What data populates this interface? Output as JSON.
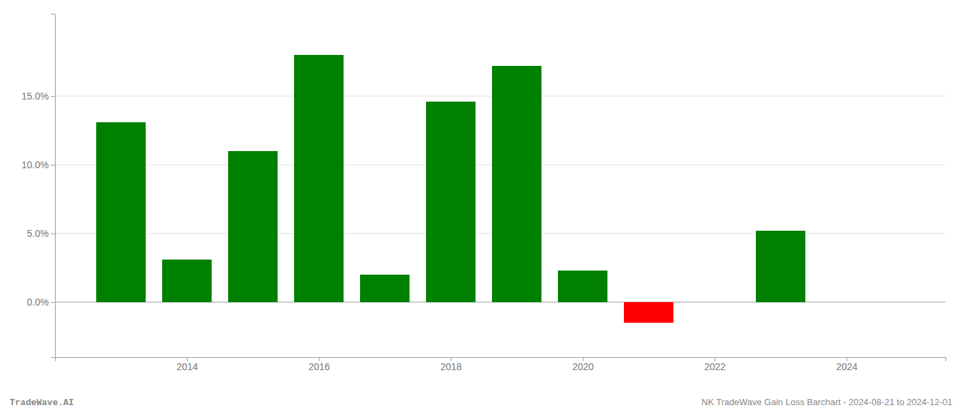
{
  "chart_data": {
    "type": "bar",
    "x": [
      2013,
      2014,
      2015,
      2016,
      2017,
      2018,
      2019,
      2020,
      2021,
      2023
    ],
    "values": [
      0.131,
      0.031,
      0.11,
      0.18,
      0.02,
      0.146,
      0.172,
      0.023,
      -0.015,
      0.052
    ],
    "colors": [
      "#008000",
      "#008000",
      "#008000",
      "#008000",
      "#008000",
      "#008000",
      "#008000",
      "#008000",
      "#ff0000",
      "#008000"
    ],
    "xlim": [
      2012.0,
      2025.5
    ],
    "xticks": [
      2014,
      2016,
      2018,
      2020,
      2022,
      2024
    ],
    "ylim": [
      -0.04,
      0.21
    ],
    "yticks": [
      {
        "value": 0.0,
        "label": "0.0%"
      },
      {
        "value": 0.05,
        "label": "5.0%"
      },
      {
        "value": 0.1,
        "label": "10.0%"
      },
      {
        "value": 0.15,
        "label": "15.0%"
      }
    ],
    "grid": true,
    "annotations": [
      "TradeWave.AI",
      "NK TradeWave Gain Loss Barchart - 2024-08-21 to 2024-12-01"
    ]
  }
}
